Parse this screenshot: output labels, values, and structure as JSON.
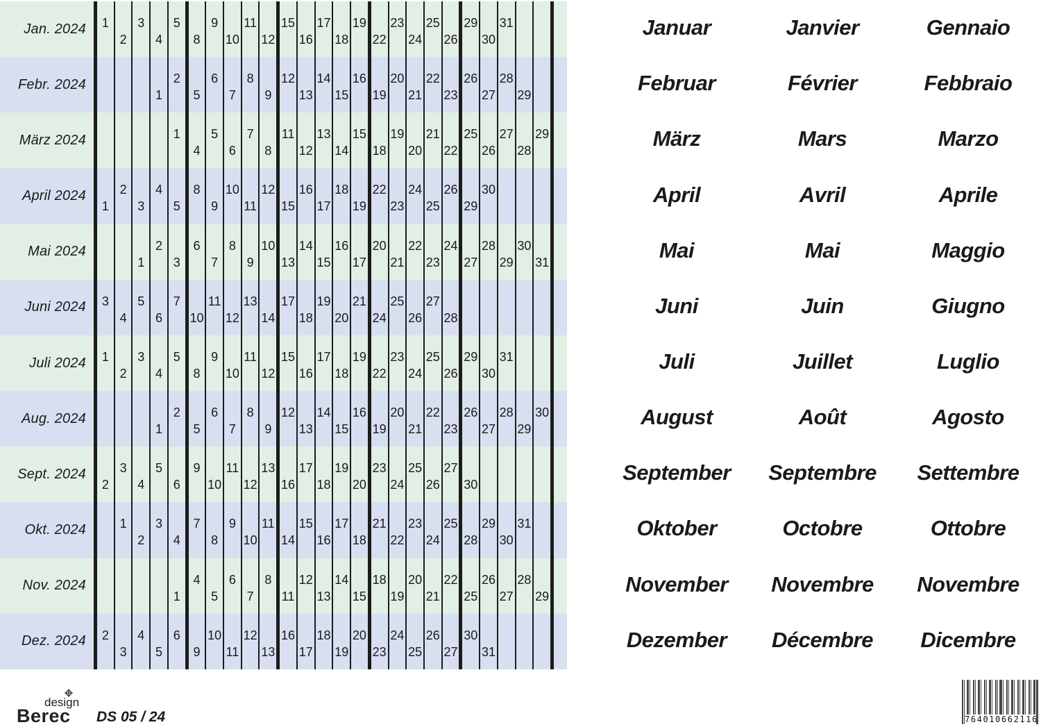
{
  "calendar": {
    "rows": [
      {
        "label": "Jan. 2024",
        "bg": "green",
        "odd_top": true,
        "cells": [
          1,
          2,
          3,
          4,
          5,
          8,
          9,
          10,
          11,
          12,
          15,
          16,
          17,
          18,
          19,
          22,
          23,
          24,
          25,
          26,
          29,
          30,
          31,
          null,
          null
        ]
      },
      {
        "label": "Febr. 2024",
        "bg": "blue",
        "odd_top": false,
        "cells": [
          null,
          null,
          null,
          1,
          2,
          5,
          6,
          7,
          8,
          9,
          12,
          13,
          14,
          15,
          16,
          19,
          20,
          21,
          22,
          23,
          26,
          27,
          28,
          29,
          null
        ]
      },
      {
        "label": "März 2024",
        "bg": "green",
        "odd_top": true,
        "cells": [
          null,
          null,
          null,
          null,
          1,
          4,
          5,
          6,
          7,
          8,
          11,
          12,
          13,
          14,
          15,
          18,
          19,
          20,
          21,
          22,
          25,
          26,
          27,
          28,
          29
        ]
      },
      {
        "label": "April 2024",
        "bg": "blue",
        "odd_top": false,
        "cells": [
          1,
          2,
          3,
          4,
          5,
          8,
          9,
          10,
          11,
          12,
          15,
          16,
          17,
          18,
          19,
          22,
          23,
          24,
          25,
          26,
          29,
          30,
          null,
          null,
          null
        ]
      },
      {
        "label": "Mai 2024",
        "bg": "green",
        "odd_top": false,
        "cells": [
          null,
          null,
          1,
          2,
          3,
          6,
          7,
          8,
          9,
          10,
          13,
          14,
          15,
          16,
          17,
          20,
          21,
          22,
          23,
          24,
          27,
          28,
          29,
          30,
          31
        ]
      },
      {
        "label": "Juni 2024",
        "bg": "blue",
        "odd_top": true,
        "cells": [
          3,
          4,
          5,
          6,
          7,
          10,
          11,
          12,
          13,
          14,
          17,
          18,
          19,
          20,
          21,
          24,
          25,
          26,
          27,
          28,
          null,
          null,
          null,
          null,
          null
        ]
      },
      {
        "label": "Juli 2024",
        "bg": "green",
        "odd_top": true,
        "cells": [
          1,
          2,
          3,
          4,
          5,
          8,
          9,
          10,
          11,
          12,
          15,
          16,
          17,
          18,
          19,
          22,
          23,
          24,
          25,
          26,
          29,
          30,
          31,
          null,
          null
        ]
      },
      {
        "label": "Aug. 2024",
        "bg": "blue",
        "odd_top": false,
        "cells": [
          null,
          null,
          null,
          1,
          2,
          5,
          6,
          7,
          8,
          9,
          12,
          13,
          14,
          15,
          16,
          19,
          20,
          21,
          22,
          23,
          26,
          27,
          28,
          29,
          30
        ]
      },
      {
        "label": "Sept. 2024",
        "bg": "green",
        "odd_top": true,
        "cells": [
          2,
          3,
          4,
          5,
          6,
          9,
          10,
          11,
          12,
          13,
          16,
          17,
          18,
          19,
          20,
          23,
          24,
          25,
          26,
          27,
          30,
          null,
          null,
          null,
          null
        ]
      },
      {
        "label": "Okt. 2024",
        "bg": "blue",
        "odd_top": true,
        "cells": [
          null,
          1,
          2,
          3,
          4,
          7,
          8,
          9,
          10,
          11,
          14,
          15,
          16,
          17,
          18,
          21,
          22,
          23,
          24,
          25,
          28,
          29,
          30,
          31,
          null
        ]
      },
      {
        "label": "Nov. 2024",
        "bg": "green",
        "odd_top": false,
        "cells": [
          null,
          null,
          null,
          null,
          1,
          4,
          5,
          6,
          7,
          8,
          11,
          12,
          13,
          14,
          15,
          18,
          19,
          20,
          21,
          22,
          25,
          26,
          27,
          28,
          29
        ]
      },
      {
        "label": "Dez. 2024",
        "bg": "blue",
        "odd_top": false,
        "cells": [
          2,
          3,
          4,
          5,
          6,
          9,
          10,
          11,
          12,
          13,
          16,
          17,
          18,
          19,
          20,
          23,
          24,
          25,
          26,
          27,
          30,
          31,
          null,
          null,
          null
        ]
      }
    ]
  },
  "month_names": {
    "rows": [
      {
        "de": "Januar",
        "fr": "Janvier",
        "it": "Gennaio"
      },
      {
        "de": "Februar",
        "fr": "Février",
        "it": "Febbraio"
      },
      {
        "de": "März",
        "fr": "Mars",
        "it": "Marzo"
      },
      {
        "de": "April",
        "fr": "Avril",
        "it": "Aprile"
      },
      {
        "de": "Mai",
        "fr": "Mai",
        "it": "Maggio"
      },
      {
        "de": "Juni",
        "fr": "Juin",
        "it": "Giugno"
      },
      {
        "de": "Juli",
        "fr": "Juillet",
        "it": "Luglio"
      },
      {
        "de": "August",
        "fr": "Août",
        "it": "Agosto"
      },
      {
        "de": "September",
        "fr": "Septembre",
        "it": "Settembre"
      },
      {
        "de": "Oktober",
        "fr": "Octobre",
        "it": "Ottobre"
      },
      {
        "de": "November",
        "fr": "Novembre",
        "it": "Novembre"
      },
      {
        "de": "Dezember",
        "fr": "Décembre",
        "it": "Dicembre"
      }
    ]
  },
  "footer": {
    "brand_top": "design",
    "brand_bottom": "Berec",
    "edition": "DS 05 / 24",
    "barcode_digits": "7640106621162"
  },
  "colors": {
    "row_green": "#e2efe5",
    "row_blue": "#d8dff1",
    "grid_line": "#1c1c1a",
    "barcode_bar": "#474747"
  }
}
